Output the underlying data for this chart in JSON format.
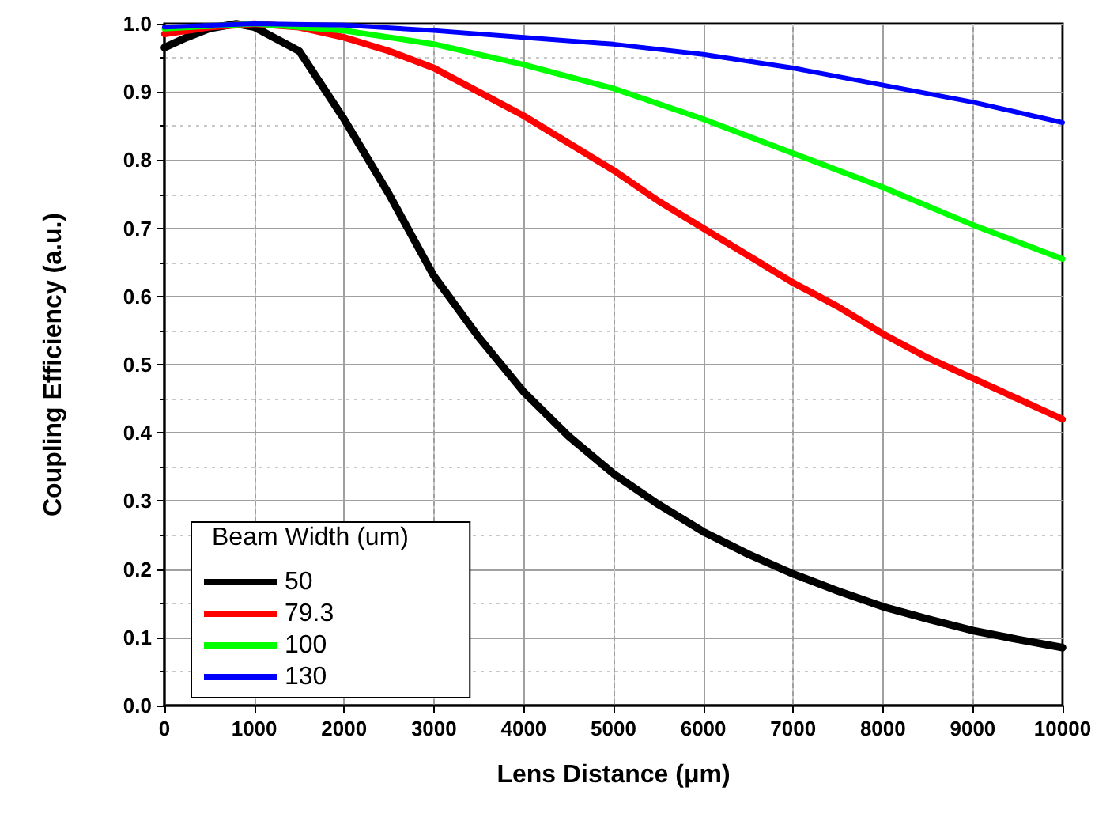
{
  "chart_data": {
    "type": "line",
    "xlabel": "Lens Distance (μm)",
    "ylabel": "Coupling Efficiency (a.u.)",
    "legend_title": "Beam Width (um)",
    "legend": "bottom left",
    "grid": true,
    "marker": "none",
    "line_style": "solid",
    "xlim": [
      0,
      10000
    ],
    "xticks": [
      0,
      1000,
      2000,
      3000,
      4000,
      5000,
      6000,
      7000,
      8000,
      9000,
      10000
    ],
    "ylim": [
      0,
      1
    ],
    "yticks": [
      {
        "value": 0,
        "label": "0.0"
      },
      0.1,
      0.2,
      0.3,
      0.4,
      0.5,
      0.6,
      0.7,
      0.8,
      0.9,
      {
        "value": 1,
        "label": "1.0"
      }
    ],
    "series": [
      {
        "name": "50",
        "color": "#000000",
        "x": [
          0,
          250,
          500,
          800,
          1000,
          1500,
          2000,
          2500,
          3000,
          3500,
          4000,
          4500,
          5000,
          5500,
          6000,
          6500,
          7000,
          7500,
          8000,
          8500,
          9000,
          9500,
          10000
        ],
        "values": [
          0.965,
          0.98,
          0.993,
          1.0,
          0.995,
          0.96,
          0.86,
          0.75,
          0.63,
          0.54,
          0.46,
          0.395,
          0.34,
          0.295,
          0.255,
          0.222,
          0.193,
          0.168,
          0.145,
          0.127,
          0.11,
          0.097,
          0.085
        ]
      },
      {
        "name": "79.3",
        "color": "#ff0000",
        "x": [
          0,
          500,
          1000,
          1500,
          2000,
          2500,
          3000,
          3500,
          4000,
          4500,
          5000,
          5500,
          6000,
          6500,
          7000,
          7500,
          8000,
          8500,
          9000,
          9500,
          10000
        ],
        "values": [
          0.985,
          0.995,
          1.0,
          0.995,
          0.98,
          0.96,
          0.935,
          0.9,
          0.865,
          0.825,
          0.785,
          0.74,
          0.7,
          0.66,
          0.62,
          0.585,
          0.545,
          0.51,
          0.48,
          0.45,
          0.42
        ]
      },
      {
        "name": "100",
        "color": "#00ff00",
        "x": [
          0,
          1000,
          2000,
          3000,
          4000,
          5000,
          6000,
          7000,
          8000,
          9000,
          10000
        ],
        "values": [
          0.993,
          1.0,
          0.99,
          0.97,
          0.94,
          0.905,
          0.86,
          0.81,
          0.76,
          0.705,
          0.655
        ]
      },
      {
        "name": "130",
        "color": "#0000ff",
        "x": [
          0,
          1000,
          2000,
          3000,
          4000,
          5000,
          6000,
          7000,
          8000,
          9000,
          10000
        ],
        "values": [
          0.995,
          1.0,
          0.998,
          0.99,
          0.98,
          0.97,
          0.955,
          0.935,
          0.91,
          0.885,
          0.855
        ]
      }
    ]
  }
}
